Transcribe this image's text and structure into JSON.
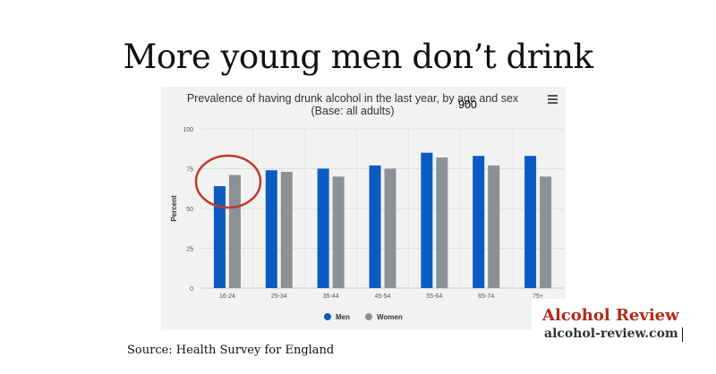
{
  "slide": {
    "title": "More young men don’t drink",
    "source": "Source: Health Survey for England"
  },
  "brand": {
    "name": "Alcohol Review",
    "url": "alcohol-review.com"
  },
  "colors": {
    "men": "#0a5cc2",
    "women": "#8c9196",
    "highlight_circle": "#c0392b",
    "panel_bg": "#f2f2f2"
  },
  "icons": {
    "menu": "hamburger-menu-icon"
  },
  "stray_text": "900",
  "chart_data": {
    "type": "bar",
    "title": "Prevalence of having drunk alcohol in the last year, by age and sex",
    "subtitle": "(Base: all adults)",
    "xlabel": "",
    "ylabel": "Percent",
    "categories": [
      "16-24",
      "25-34",
      "35-44",
      "45-54",
      "55-64",
      "65-74",
      "75+"
    ],
    "series": [
      {
        "name": "Men",
        "values": [
          64,
          74,
          75,
          77,
          85,
          83,
          83
        ]
      },
      {
        "name": "Women",
        "values": [
          71,
          73,
          70,
          75,
          82,
          77,
          70
        ]
      }
    ],
    "yticks": [
      0,
      25,
      50,
      75,
      100
    ],
    "ylim": [
      0,
      100
    ],
    "grid": true,
    "legend_position": "bottom",
    "highlight": "16-24"
  }
}
